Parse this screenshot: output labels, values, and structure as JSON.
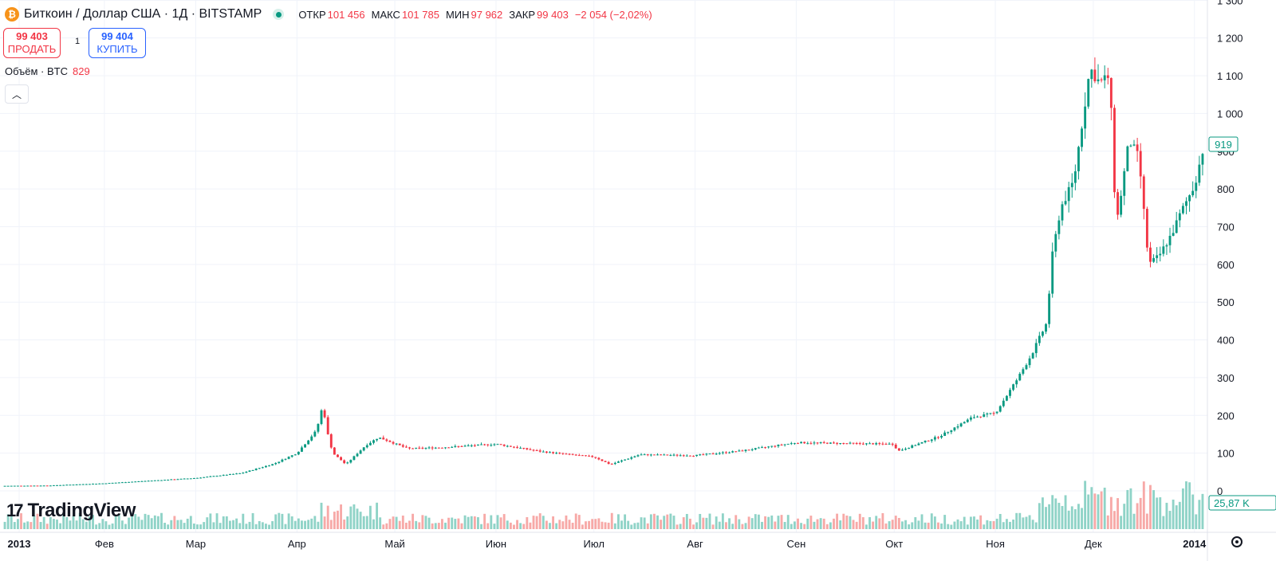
{
  "header": {
    "coin_icon": "₿",
    "title": "Биткоин / Доллар США · 1Д · BITSTAMP",
    "market_status_icon": "market-open-dot",
    "open_label": "ОТКР",
    "open_value": "101 456",
    "high_label": "МАКС",
    "high_value": "101 785",
    "low_label": "МИН",
    "low_value": "97 962",
    "close_label": "ЗАКР",
    "close_value": "99 403",
    "change": "−2 054 (−2,02%)"
  },
  "trade": {
    "sell_price": "99 403",
    "sell_label": "ПРОДАТЬ",
    "spread": "1",
    "buy_price": "99 404",
    "buy_label": "КУПИТЬ"
  },
  "volume_legend": {
    "label": "Объём · BTC",
    "value": "829"
  },
  "branding": {
    "logo_mark": "17",
    "logo_text": "TradingView"
  },
  "colors": {
    "up": "#089981",
    "down": "#f23645",
    "vol_up": "#8fd3c7",
    "vol_down": "#f7a9a7",
    "grid": "#f0f3fa"
  },
  "chart_data": {
    "type": "candlestick",
    "symbol": "Биткоин / Доллар США",
    "interval": "1Д",
    "exchange": "BITSTAMP",
    "x_tick_labels": [
      "2013",
      "Фев",
      "Мар",
      "Апр",
      "Май",
      "Июн",
      "Июл",
      "Авг",
      "Сен",
      "Окт",
      "Ноя",
      "Дек",
      "2014"
    ],
    "y_ticks": [
      0,
      100,
      200,
      300,
      400,
      500,
      600,
      700,
      800,
      900,
      1000,
      1100,
      1200,
      1300
    ],
    "y_tick_labels": [
      "0",
      "100",
      "200",
      "300",
      "400",
      "500",
      "600",
      "700",
      "800",
      "900",
      "1 000",
      "1 100",
      "1 200",
      "1 300"
    ],
    "ylim": [
      0,
      1300
    ],
    "last_price_label": "919",
    "last_volume_label": "25,87 K",
    "grid": true,
    "series_points": [
      {
        "date": "2013-01-01",
        "close": 13.3
      },
      {
        "date": "2013-01-15",
        "close": 14.2
      },
      {
        "date": "2013-02-01",
        "close": 20
      },
      {
        "date": "2013-02-15",
        "close": 27
      },
      {
        "date": "2013-03-01",
        "close": 34
      },
      {
        "date": "2013-03-15",
        "close": 47
      },
      {
        "date": "2013-03-25",
        "close": 72
      },
      {
        "date": "2013-04-01",
        "close": 100
      },
      {
        "date": "2013-04-07",
        "close": 160
      },
      {
        "date": "2013-04-09",
        "close": 230
      },
      {
        "date": "2013-04-10",
        "close": 165
      },
      {
        "date": "2013-04-12",
        "close": 100
      },
      {
        "date": "2013-04-16",
        "close": 70
      },
      {
        "date": "2013-04-22",
        "close": 120
      },
      {
        "date": "2013-04-26",
        "close": 142
      },
      {
        "date": "2013-05-05",
        "close": 112
      },
      {
        "date": "2013-05-15",
        "close": 115
      },
      {
        "date": "2013-06-01",
        "close": 124
      },
      {
        "date": "2013-06-15",
        "close": 104
      },
      {
        "date": "2013-07-01",
        "close": 90
      },
      {
        "date": "2013-07-06",
        "close": 70
      },
      {
        "date": "2013-07-15",
        "close": 96
      },
      {
        "date": "2013-08-01",
        "close": 94
      },
      {
        "date": "2013-08-15",
        "close": 106
      },
      {
        "date": "2013-09-01",
        "close": 128
      },
      {
        "date": "2013-09-15",
        "close": 126
      },
      {
        "date": "2013-10-01",
        "close": 124
      },
      {
        "date": "2013-10-02",
        "close": 105
      },
      {
        "date": "2013-10-15",
        "close": 145
      },
      {
        "date": "2013-10-25",
        "close": 195
      },
      {
        "date": "2013-11-01",
        "close": 206
      },
      {
        "date": "2013-11-08",
        "close": 300
      },
      {
        "date": "2013-11-12",
        "close": 360
      },
      {
        "date": "2013-11-17",
        "close": 450
      },
      {
        "date": "2013-11-18",
        "close": 600
      },
      {
        "date": "2013-11-21",
        "close": 750
      },
      {
        "date": "2013-11-25",
        "close": 820
      },
      {
        "date": "2013-11-30",
        "close": 1120
      },
      {
        "date": "2013-12-03",
        "close": 1080
      },
      {
        "date": "2013-12-06",
        "close": 1100
      },
      {
        "date": "2013-12-08",
        "close": 700
      },
      {
        "date": "2013-12-12",
        "close": 930
      },
      {
        "date": "2013-12-15",
        "close": 880
      },
      {
        "date": "2013-12-18",
        "close": 600
      },
      {
        "date": "2013-12-21",
        "close": 620
      },
      {
        "date": "2013-12-25",
        "close": 680
      },
      {
        "date": "2013-12-28",
        "close": 740
      },
      {
        "date": "2014-01-01",
        "close": 810
      },
      {
        "date": "2014-01-04",
        "close": 919
      }
    ],
    "volume_scale_max": 250
  }
}
